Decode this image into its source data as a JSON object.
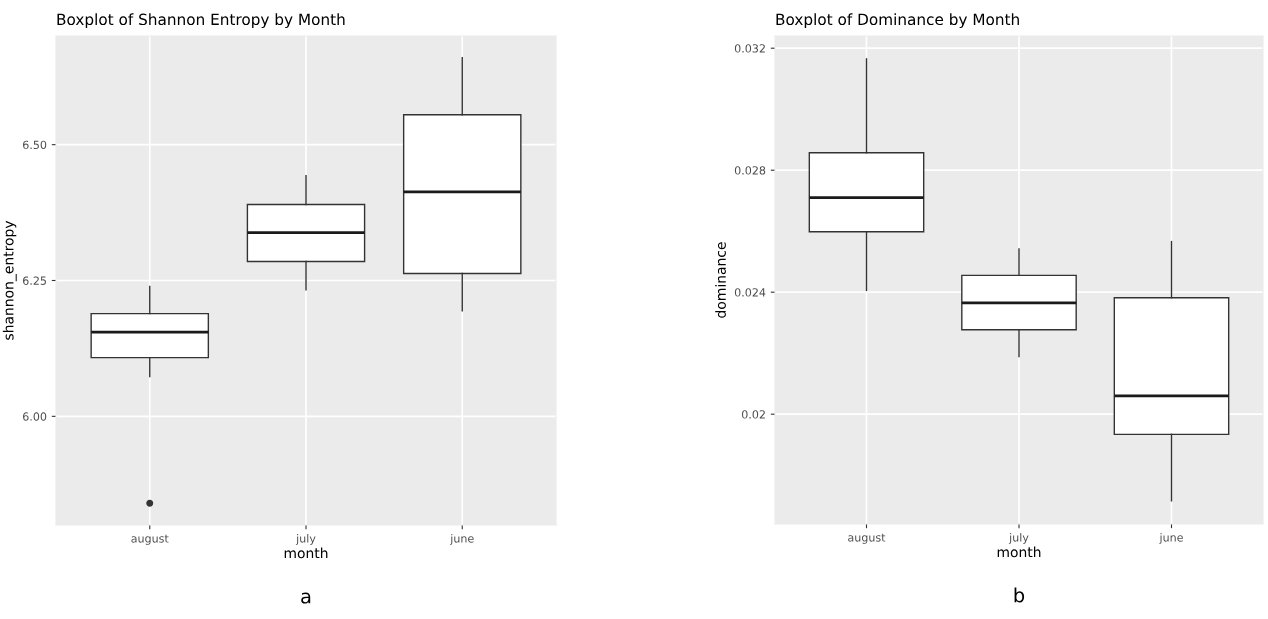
{
  "chart_data": [
    {
      "type": "box",
      "title": "Boxplot of Shannon Entropy by Month",
      "xlabel": "month",
      "ylabel": "shannon_entropy",
      "categories": [
        "august",
        "july",
        "june"
      ],
      "boxes": [
        {
          "low": 6.073,
          "q1": 6.108,
          "median": 6.155,
          "q3": 6.189,
          "high": 6.239,
          "outliers": [
            5.84
          ]
        },
        {
          "low": 6.233,
          "q1": 6.285,
          "median": 6.338,
          "q3": 6.39,
          "high": 6.443
        },
        {
          "low": 6.194,
          "q1": 6.263,
          "median": 6.413,
          "q3": 6.555,
          "high": 6.66
        }
      ],
      "ylim": [
        5.8,
        6.7
      ],
      "yticks": [
        {
          "value": 6.0,
          "label": "6.00"
        },
        {
          "value": 6.25,
          "label": "6.25"
        },
        {
          "value": 6.5,
          "label": "6.50"
        }
      ],
      "grid": true,
      "annotations": [
        "a"
      ]
    },
    {
      "type": "box",
      "title": "Boxplot of Dominance by Month",
      "xlabel": "month",
      "ylabel": "dominance",
      "categories": [
        "august",
        "july",
        "june"
      ],
      "boxes": [
        {
          "low": 0.02406,
          "q1": 0.02598,
          "median": 0.0271,
          "q3": 0.02857,
          "high": 0.03165
        },
        {
          "low": 0.02189,
          "q1": 0.02277,
          "median": 0.02365,
          "q3": 0.02455,
          "high": 0.02542
        },
        {
          "low": 0.01716,
          "q1": 0.01934,
          "median": 0.0206,
          "q3": 0.02382,
          "high": 0.02566
        }
      ],
      "ylim": [
        0.0164,
        0.0324
      ],
      "yticks": [
        0.02,
        0.024,
        0.028,
        0.032
      ],
      "grid": true,
      "annotations": [
        "b"
      ]
    }
  ]
}
